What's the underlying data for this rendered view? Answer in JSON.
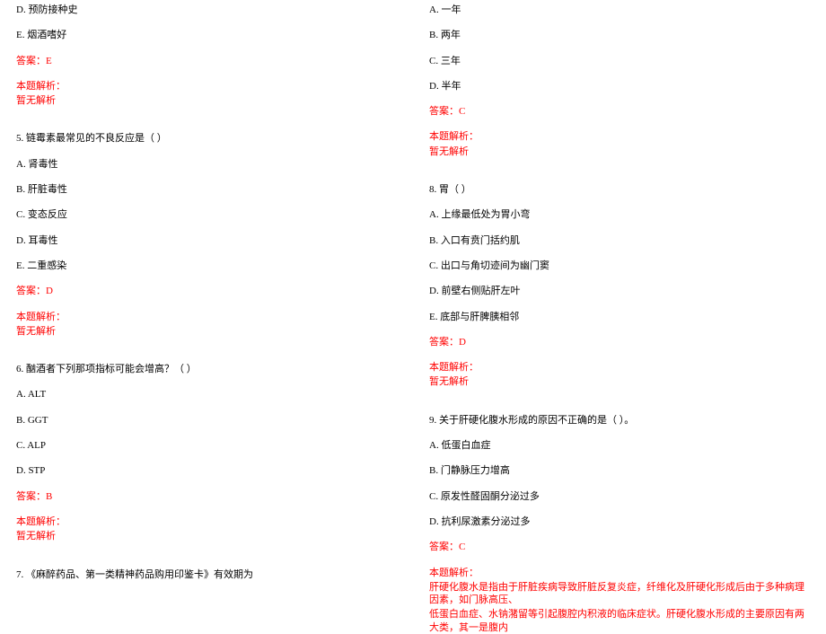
{
  "left": {
    "q4_options": [
      "D. 预防接种史",
      "E. 烟酒嗜好"
    ],
    "q4_answer": "答案：E",
    "q4_analysis_label": "本题解析：",
    "q4_analysis": "暂无解析",
    "q5_title": "5. 链霉素最常见的不良反应是（ ）",
    "q5_options": [
      "A. 肾毒性",
      "B. 肝脏毒性",
      "C. 变态反应",
      "D. 耳毒性",
      "E. 二重感染"
    ],
    "q5_answer": "答案：D",
    "q5_analysis_label": "本题解析：",
    "q5_analysis": "暂无解析",
    "q6_title": "6. 酗酒者下列那项指标可能会增高？（ ）",
    "q6_options": [
      "A. ALT",
      "B. GGT",
      "C. ALP",
      "D. STP"
    ],
    "q6_answer": "答案：B",
    "q6_analysis_label": "本题解析：",
    "q6_analysis": "暂无解析",
    "q7_title": "7. 《麻醉药品、第一类精神药品购用印鉴卡》有效期为"
  },
  "right": {
    "q7_options": [
      "A. 一年",
      "B. 两年",
      "C. 三年",
      "D. 半年"
    ],
    "q7_answer": "答案：C",
    "q7_analysis_label": "本题解析：",
    "q7_analysis": "暂无解析",
    "q8_title": "8. 胃（ ）",
    "q8_options": [
      "A. 上缘最低处为胃小弯",
      "B. 入口有贲门括约肌",
      "C. 出口与角切迹间为幽门窦",
      "D. 前壁右侧贴肝左叶",
      "E. 底部与肝脾胰相邻"
    ],
    "q8_answer": "答案：D",
    "q8_analysis_label": "本题解析：",
    "q8_analysis": "暂无解析",
    "q9_title": "9. 关于肝硬化腹水形成的原因不正确的是（ ）。",
    "q9_options": [
      "A. 低蛋白血症",
      "B. 门静脉压力增高",
      "C. 原发性醛固酮分泌过多",
      "D. 抗利尿激素分泌过多"
    ],
    "q9_answer": "答案：C",
    "q9_analysis_label": "本题解析：",
    "q9_analysis_l1": "肝硬化腹水是指由于肝脏疾病导致肝脏反复炎症，纤维化及肝硬化形成后由于多种病理因素，如门脉高压、",
    "q9_analysis_l2": "低蛋白血症、水钠潴留等引起腹腔内积液的临床症状。肝硬化腹水形成的主要原因有两大类，其一是腹内"
  }
}
